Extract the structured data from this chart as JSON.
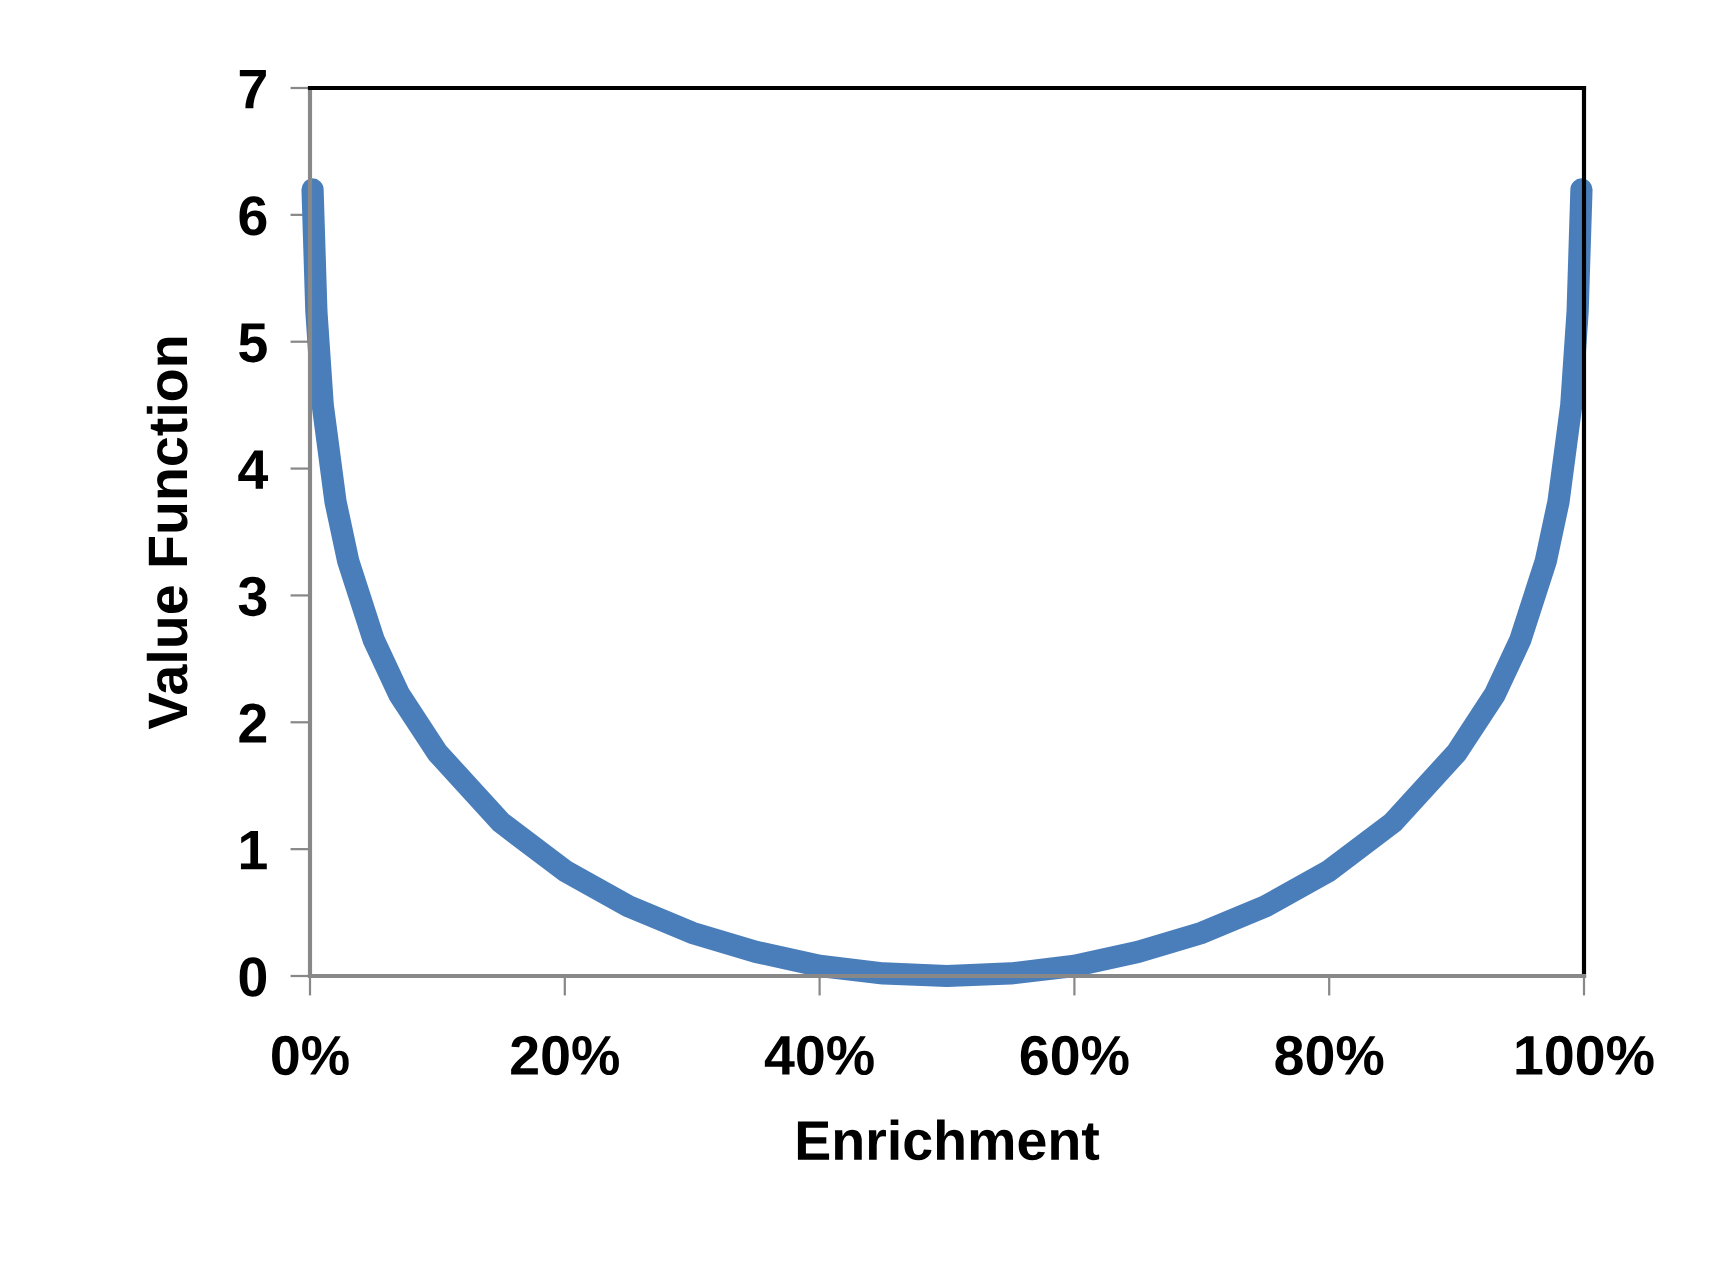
{
  "chart_data": {
    "type": "line",
    "xlabel": "Enrichment",
    "ylabel": "Value Function",
    "x": [
      0.2,
      0.5,
      1,
      2,
      3,
      5,
      7,
      10,
      15,
      20,
      25,
      30,
      35,
      40,
      45,
      50,
      55,
      60,
      65,
      70,
      75,
      80,
      85,
      90,
      93,
      95,
      97,
      98,
      99,
      99.5,
      99.8
    ],
    "series": [
      {
        "color": "#4a7ebb",
        "values": [
          6.2,
          5.24,
          4.5,
          3.74,
          3.27,
          2.65,
          2.22,
          1.76,
          1.21,
          0.83,
          0.55,
          0.34,
          0.19,
          0.08,
          0.02,
          0,
          0.02,
          0.08,
          0.19,
          0.34,
          0.55,
          0.83,
          1.21,
          1.76,
          2.22,
          2.65,
          3.27,
          3.74,
          4.5,
          5.24,
          6.2
        ]
      }
    ],
    "xlim": [
      0,
      100
    ],
    "xticks": [
      {
        "value": 0,
        "label": "0%"
      },
      {
        "value": 20,
        "label": "20%"
      },
      {
        "value": 40,
        "label": "40%"
      },
      {
        "value": 60,
        "label": "60%"
      },
      {
        "value": 80,
        "label": "80%"
      },
      {
        "value": 100,
        "label": "100%"
      }
    ],
    "ylim": [
      0,
      7
    ],
    "yticks": [
      0,
      1,
      2,
      3,
      4,
      5,
      6,
      7
    ],
    "grid": false,
    "line_style": "solid"
  }
}
